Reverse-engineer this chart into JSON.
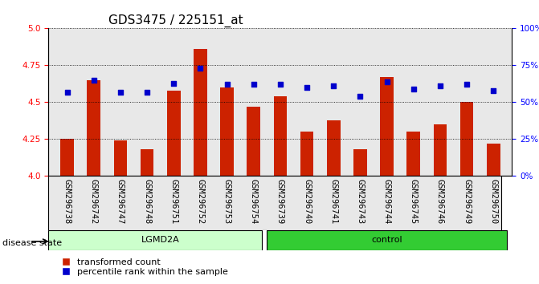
{
  "title": "GDS3475 / 225151_at",
  "samples": [
    "GSM296738",
    "GSM296742",
    "GSM296747",
    "GSM296748",
    "GSM296751",
    "GSM296752",
    "GSM296753",
    "GSM296754",
    "GSM296739",
    "GSM296740",
    "GSM296741",
    "GSM296743",
    "GSM296744",
    "GSM296745",
    "GSM296746",
    "GSM296749",
    "GSM296750"
  ],
  "bar_values": [
    4.25,
    4.65,
    4.24,
    4.18,
    4.58,
    4.86,
    4.6,
    4.47,
    4.54,
    4.3,
    4.38,
    4.18,
    4.67,
    4.3,
    4.35,
    4.5,
    4.22
  ],
  "dot_values": [
    57,
    65,
    57,
    57,
    63,
    73,
    62,
    62,
    62,
    60,
    61,
    54,
    64,
    59,
    61,
    62,
    58
  ],
  "groups": [
    {
      "label": "LGMD2A",
      "start": 0,
      "end": 8,
      "color": "#ccffcc"
    },
    {
      "label": "control",
      "start": 8,
      "end": 17,
      "color": "#33cc33"
    }
  ],
  "ylim_left": [
    4.0,
    5.0
  ],
  "ylim_right": [
    0,
    100
  ],
  "yticks_left": [
    4.0,
    4.25,
    4.5,
    4.75,
    5.0
  ],
  "yticks_right": [
    0,
    25,
    50,
    75,
    100
  ],
  "ytick_labels_right": [
    "0%",
    "25%",
    "50%",
    "75%",
    "100%"
  ],
  "bar_color": "#cc2200",
  "dot_color": "#0000cc",
  "grid_color": "#000000",
  "background_color": "#ffffff",
  "bar_area_bg": "#e8e8e8",
  "disease_state_label": "disease state",
  "legend_bar": "transformed count",
  "legend_dot": "percentile rank within the sample",
  "title_fontsize": 11,
  "axis_fontsize": 9,
  "tick_fontsize": 7.5,
  "label_fontsize": 8
}
